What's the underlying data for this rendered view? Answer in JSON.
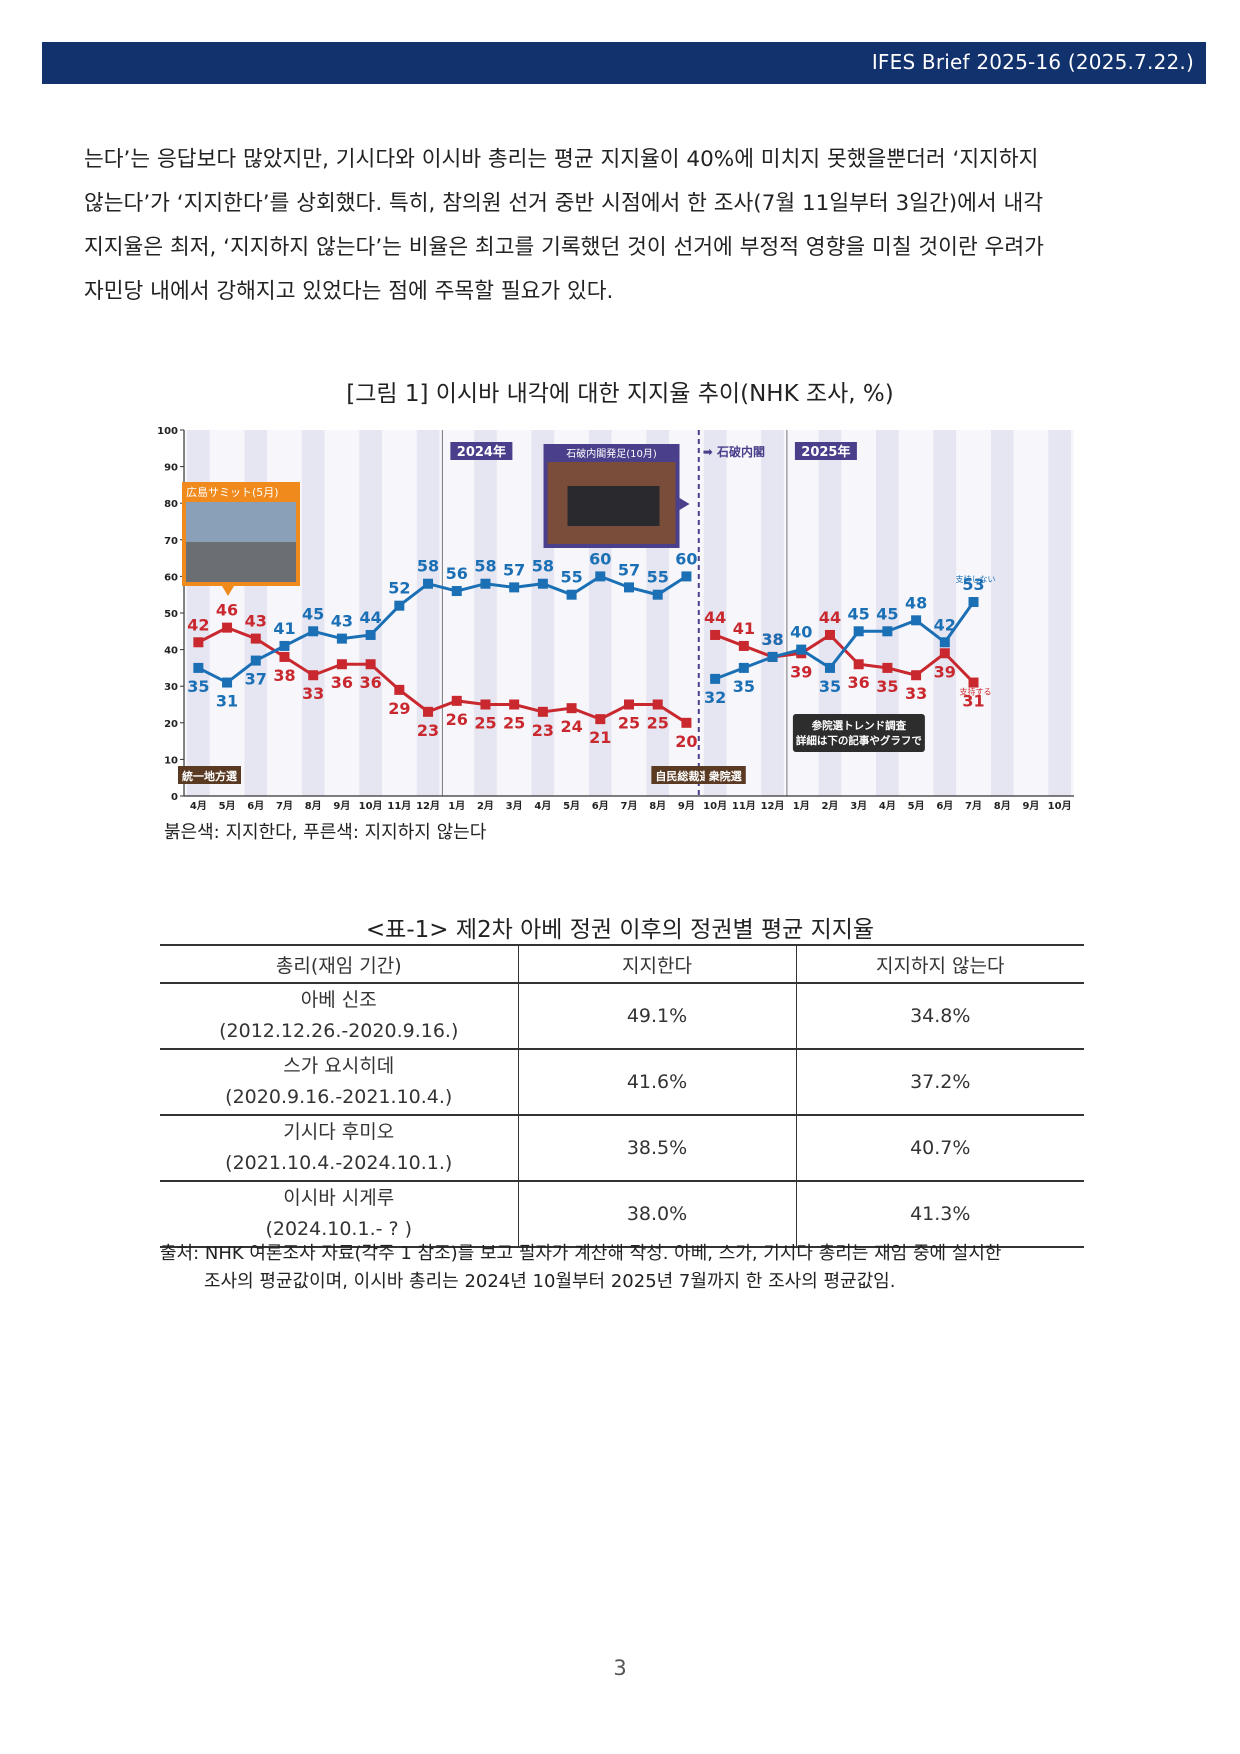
{
  "header": {
    "title": "IFES Brief 2025-16 (2025.7.22.)"
  },
  "body": {
    "lines": [
      "는다’는 응답보다 많았지만, 기시다와 이시바 총리는 평균 지지율이 40%에 미치지 못했을뿐더러 ‘지지하지",
      "않는다’가 ‘지지한다’를 상회했다. 특히, 참의원 선거 중반 시점에서 한 조사(7월 11일부터 3일간)에서 내각",
      "지지율은 최저, ‘지지하지 않는다’는 비율은 최고를 기록했던 것이 선거에 부정적 영향을 미칠 것이란 우려가",
      "자민당 내에서 강해지고 있었다는 점에 주목할 필요가 있다."
    ]
  },
  "figure": {
    "caption": "[그림 1] 이시바 내각에 대한 지지율 추이(NHK 조사, %)",
    "note": "붉은색: 지지한다, 푸른색: 지지하지 않는다"
  },
  "chart_data": {
    "type": "line",
    "title": "",
    "xlabel": "",
    "ylabel": "",
    "ylim": [
      0,
      100
    ],
    "yticks": [
      "0",
      "10",
      "20",
      "30",
      "40",
      "50",
      "60",
      "70",
      "80",
      "90",
      "100"
    ],
    "x_labels": [
      "4月",
      "5月",
      "6月",
      "7月",
      "8月",
      "9月",
      "10月",
      "11月",
      "12月",
      "1月",
      "2月",
      "3月",
      "4月",
      "5月",
      "6月",
      "7月",
      "8月",
      "9月",
      "10月",
      "11月",
      "12月",
      "1月",
      "2月",
      "3月",
      "4月",
      "5月",
      "6月",
      "7月",
      "8月",
      "9月",
      "10月"
    ],
    "series": [
      {
        "name": "支持する",
        "color": "#c8282e",
        "segments": [
          {
            "start": 0,
            "values": [
              42,
              46,
              43,
              38,
              33,
              36,
              36,
              29,
              23,
              26,
              25,
              25,
              23,
              24,
              21,
              25,
              25,
              20
            ]
          },
          {
            "start": 18,
            "values": [
              44,
              41,
              38,
              39,
              44,
              36,
              35,
              33,
              39,
              31
            ]
          }
        ]
      },
      {
        "name": "支持しない",
        "color": "#1a6fb5",
        "segments": [
          {
            "start": 0,
            "values": [
              35,
              31,
              37,
              41,
              45,
              43,
              44,
              52,
              58,
              56,
              58,
              57,
              58,
              55,
              60,
              57,
              55,
              60
            ]
          },
          {
            "start": 18,
            "values": [
              32,
              35,
              38,
              40,
              35,
              45,
              45,
              48,
              42,
              53
            ]
          }
        ]
      }
    ],
    "year_labels": [
      "2024年",
      "2025年"
    ],
    "annotations": {
      "hiroshima": "広島サミット(5月)",
      "ishiba_photo": "石破内閣発足(10月)",
      "ishiba_arrow": "石破内閣",
      "chiho": "統一地方選",
      "jimin": "自民総裁選",
      "shuin": "衆院選",
      "sanin": "参院選トレンド調査",
      "sanin2": "詳細は下の記事やグラフで"
    },
    "colors": {
      "support": "#c8282e",
      "oppose": "#1a6fb5",
      "shade": "#e6e6f2",
      "label_bg": "#4a3f8a"
    }
  },
  "table": {
    "caption": "<표-1> 제2차 아베 정권 이후의 정권별 평균 지지율",
    "headers": [
      "총리(재임 기간)",
      "지지한다",
      "지지하지 않는다"
    ],
    "rows": [
      {
        "name": "아베 신조",
        "period": "(2012.12.26.-2020.9.16.)",
        "support": "49.1%",
        "oppose": "34.8%"
      },
      {
        "name": "스가 요시히데",
        "period": "(2020.9.16.-2021.10.4.)",
        "support": "41.6%",
        "oppose": "37.2%"
      },
      {
        "name": "기시다 후미오",
        "period": "(2021.10.4.-2024.10.1.)",
        "support": "38.5%",
        "oppose": "40.7%"
      },
      {
        "name": "이시바 시게루",
        "period": "(2024.10.1.- ? )",
        "support": "38.0%",
        "oppose": "41.3%"
      }
    ]
  },
  "source": {
    "line1": "출처: NHK 여론조사 자료(각주 1 참조)를 보고 필자가 계산해 작성. 아베, 스가, 기시다 총리는 재임 중에 실시한",
    "line2": "조사의 평균값이며, 이시바 총리는 2024년 10월부터 2025년 7월까지 한 조사의 평균값임."
  },
  "page": {
    "number": "3"
  }
}
